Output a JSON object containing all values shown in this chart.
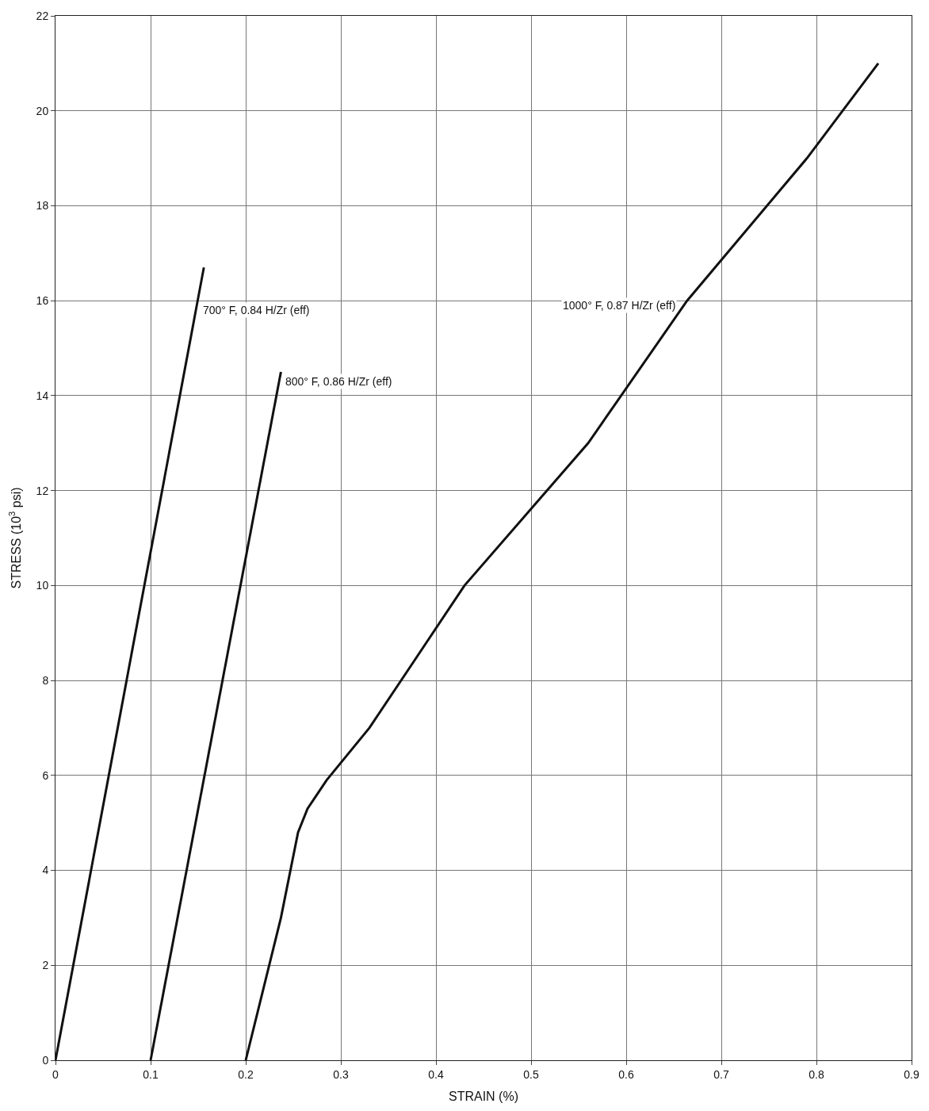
{
  "chart_data": {
    "type": "line",
    "xlabel": "STRAIN (%)",
    "ylabel": "STRESS (10$^{3}$ psi)",
    "xlim": [
      0,
      0.9
    ],
    "ylim": [
      0,
      22
    ],
    "xticks": [
      0,
      0.1,
      0.2,
      0.3,
      0.4,
      0.5,
      0.6,
      0.7,
      0.8,
      0.9
    ],
    "yticks": [
      0,
      2,
      4,
      6,
      8,
      10,
      12,
      14,
      16,
      18,
      20,
      22
    ],
    "grid": true,
    "marker": "none",
    "line_style": "solid",
    "series": [
      {
        "color": "#111111",
        "x": [
          0,
          0.156
        ],
        "values": [
          0,
          16.7
        ]
      },
      {
        "color": "#111111",
        "x": [
          0.1,
          0.237
        ],
        "values": [
          0,
          14.5
        ]
      },
      {
        "color": "#111111",
        "x": [
          0.2,
          0.237,
          0.255,
          0.265,
          0.285,
          0.33,
          0.43,
          0.56,
          0.664,
          0.79,
          0.865
        ],
        "values": [
          0,
          3,
          4.8,
          5.3,
          5.9,
          7,
          10,
          13,
          16,
          19,
          21
        ]
      }
    ],
    "annotations": [
      {
        "text": "700° F, 0.84 H/Zr (eff)",
        "x": 0.148,
        "y": 15.8
      },
      {
        "text": "800° F, 0.86 H/Zr (eff)",
        "x": 0.235,
        "y": 14.3
      },
      {
        "text": "1000° F, 0.87 H/Zr (eff)",
        "x": 0.66,
        "y": 15.9
      }
    ]
  }
}
